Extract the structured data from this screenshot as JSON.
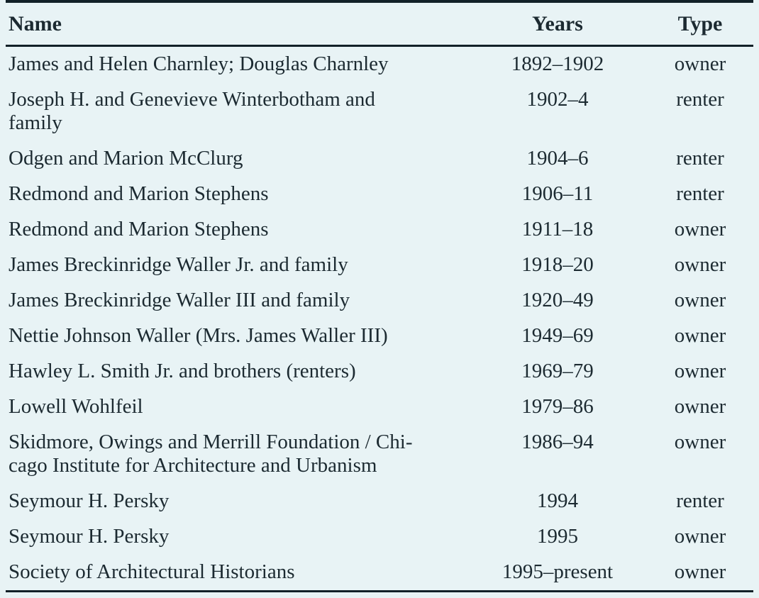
{
  "colors": {
    "background": "#e8f3f5",
    "text": "#1c2a31",
    "rule": "#122128"
  },
  "table": {
    "columns": {
      "name": "Name",
      "years": "Years",
      "type": "Type"
    },
    "rows": [
      {
        "name": "James and Helen Charnley; Douglas Charnley",
        "years": "1892–1902",
        "type": "owner"
      },
      {
        "name": "Joseph H. and Genevieve Winterbotham and\nfamily",
        "years": "1902–4",
        "type": "renter"
      },
      {
        "name": "Odgen and Marion McClurg",
        "years": "1904–6",
        "type": "renter"
      },
      {
        "name": "Redmond and Marion Stephens",
        "years": "1906–11",
        "type": "renter"
      },
      {
        "name": "Redmond and Marion Stephens",
        "years": "1911–18",
        "type": "owner"
      },
      {
        "name": "James Breckinridge Waller Jr. and family",
        "years": "1918–20",
        "type": "owner"
      },
      {
        "name": "James Breckinridge Waller III and family",
        "years": "1920–49",
        "type": "owner"
      },
      {
        "name": "Nettie Johnson Waller (Mrs. James Waller III)",
        "years": "1949–69",
        "type": "owner"
      },
      {
        "name": "Hawley L. Smith Jr. and brothers (renters)",
        "years": "1969–79",
        "type": "owner"
      },
      {
        "name": "Lowell Wohlfeil",
        "years": "1979–86",
        "type": "owner"
      },
      {
        "name": "Skidmore, Owings and Merrill Foundation / Chi-\ncago Institute for Architecture and Urbanism",
        "years": "1986–94",
        "type": "owner"
      },
      {
        "name": "Seymour H. Persky",
        "years": "1994",
        "type": "renter"
      },
      {
        "name": "Seymour H. Persky",
        "years": "1995",
        "type": "owner"
      },
      {
        "name": "Society of Architectural Historians",
        "years": "1995–present",
        "type": "owner"
      }
    ]
  }
}
